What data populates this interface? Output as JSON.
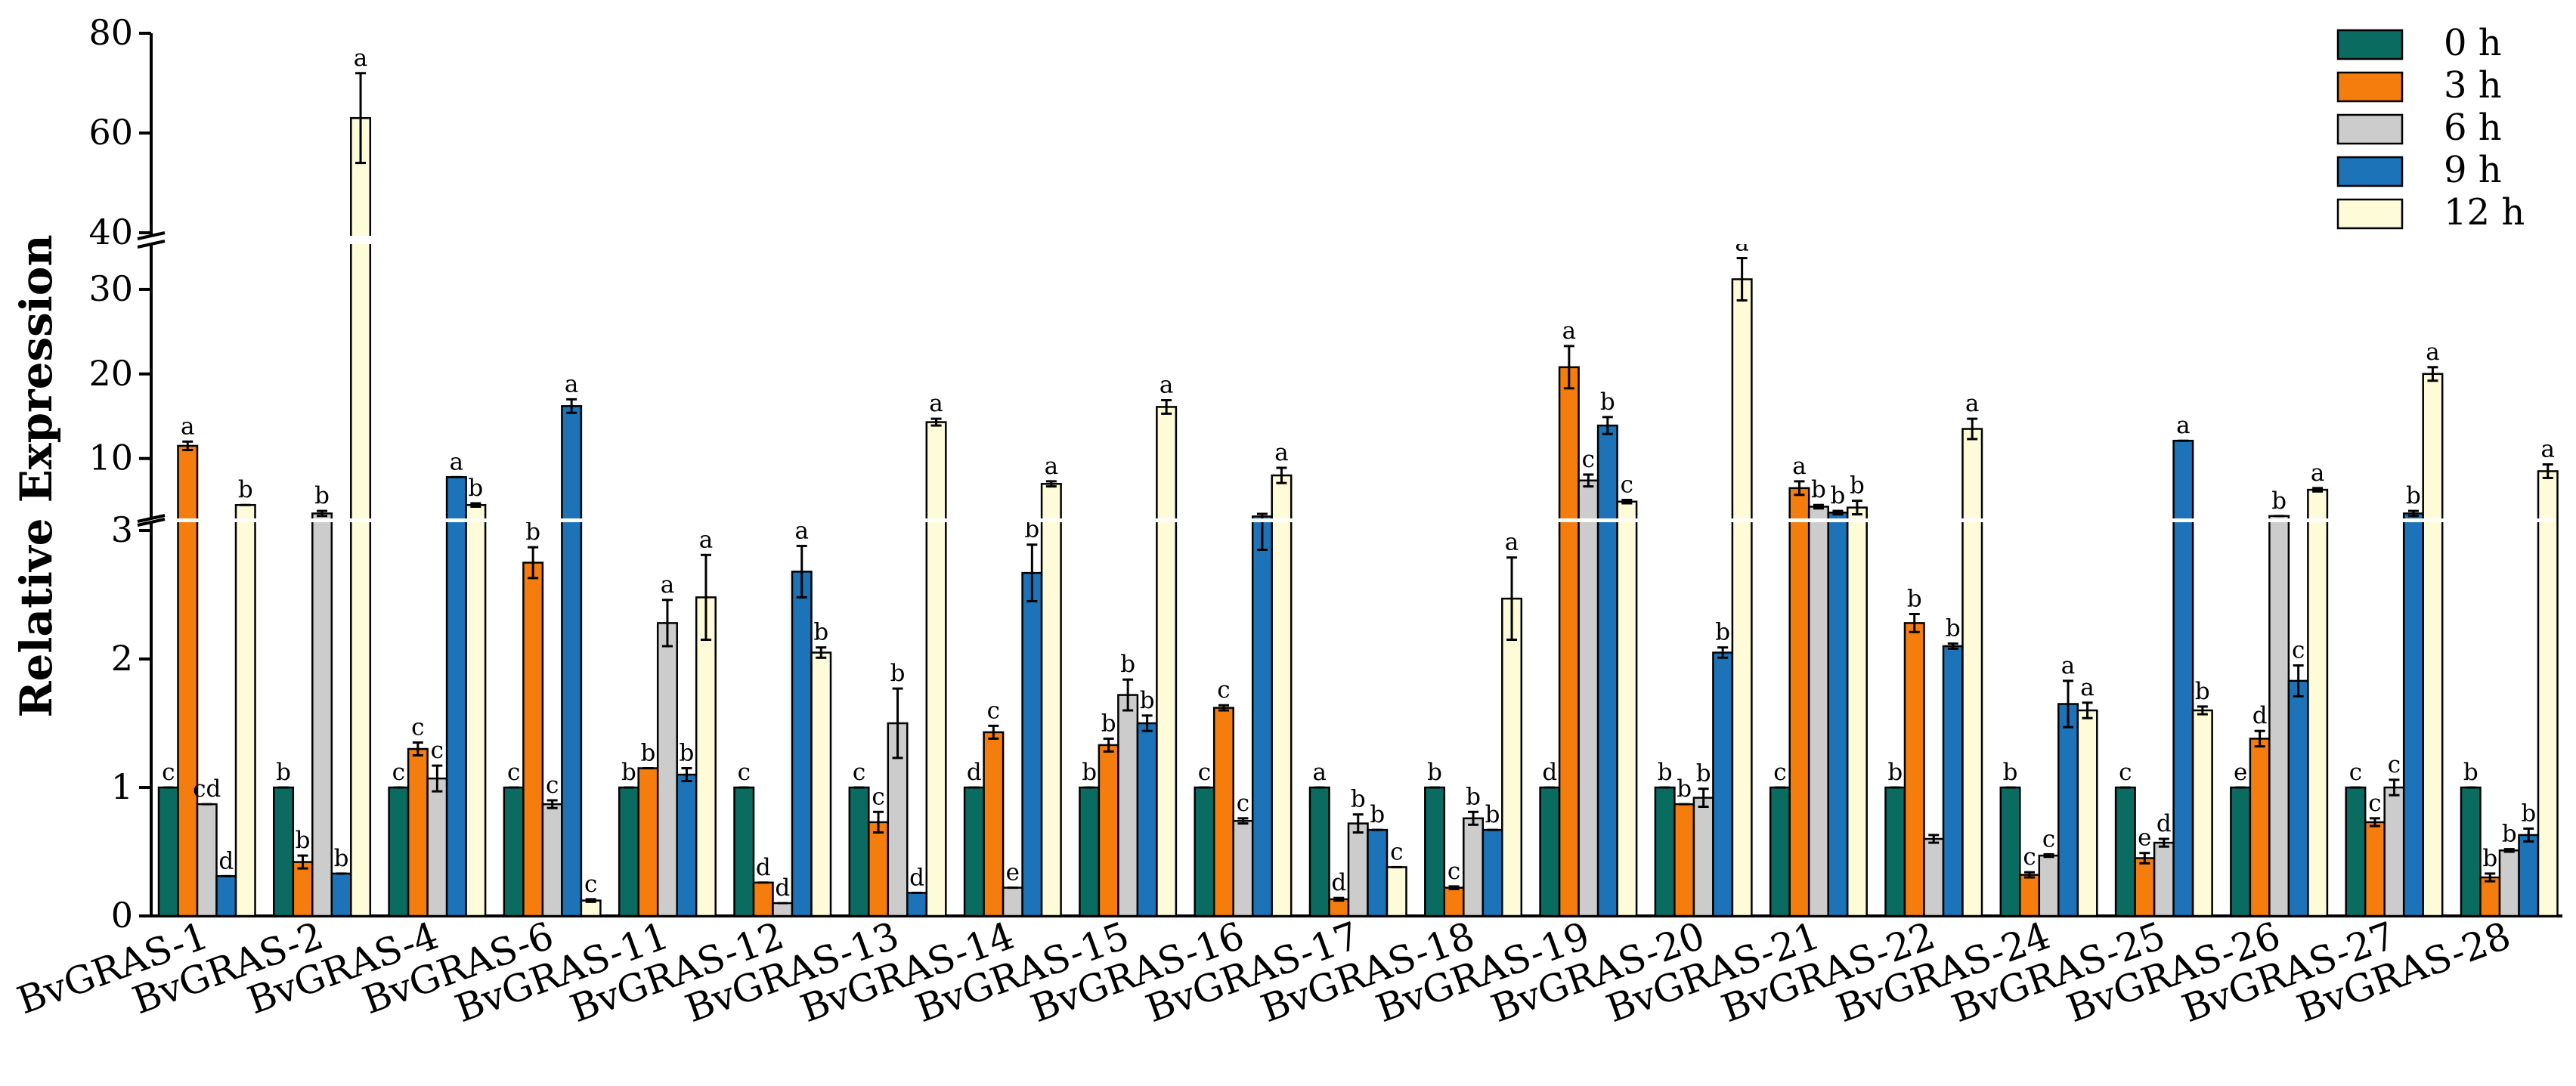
{
  "chart_data": {
    "type": "bar",
    "ylabel": "Relative Expression",
    "title": "",
    "xlabel": "",
    "axis_break": {
      "segments": [
        {
          "range": [
            0,
            3
          ],
          "ticks": [
            0,
            1,
            2,
            3
          ]
        },
        {
          "range": [
            3,
            35
          ],
          "ticks": [
            10,
            20,
            30
          ]
        },
        {
          "range": [
            40,
            80
          ],
          "ticks": [
            40,
            60,
            80
          ]
        }
      ]
    },
    "legend": [
      "0 h",
      "3 h",
      "6 h",
      "9 h",
      "12 h"
    ],
    "colors": [
      "#0a6b60",
      "#f47d0e",
      "#cccccc",
      "#1c73b8",
      "#fefbd8"
    ],
    "categories": [
      "BvGRAS-1",
      "BvGRAS-2",
      "BvGRAS-4",
      "BvGRAS-6",
      "BvGRAS-11",
      "BvGRAS-12",
      "BvGRAS-13",
      "BvGRAS-14",
      "BvGRAS-15",
      "BvGRAS-16",
      "BvGRAS-17",
      "BvGRAS-18",
      "BvGRAS-19",
      "BvGRAS-20",
      "BvGRAS-21",
      "BvGRAS-22",
      "BvGRAS-24",
      "BvGRAS-25",
      "BvGRAS-26",
      "BvGRAS-27",
      "BvGRAS-28"
    ],
    "series": [
      {
        "name": "0 h",
        "values": [
          1,
          1,
          1,
          1,
          1,
          1,
          1,
          1,
          1,
          1,
          1,
          1,
          1,
          1,
          1,
          1,
          1,
          1,
          1,
          1,
          1
        ],
        "errors": [
          0,
          0,
          0,
          0,
          0,
          0,
          0,
          0,
          0,
          0,
          0,
          0,
          0,
          0,
          0,
          0,
          0,
          0,
          0,
          0,
          0
        ],
        "letters": [
          "c",
          "b",
          "c",
          "c",
          "b",
          "c",
          "c",
          "d",
          "b",
          "c",
          "a",
          "b",
          "d",
          "b",
          "c",
          "b",
          "b",
          "c",
          "e",
          "c",
          "b"
        ]
      },
      {
        "name": "3 h",
        "values": [
          11.5,
          0.42,
          1.3,
          2.75,
          1.15,
          0.26,
          0.73,
          1.43,
          1.33,
          1.62,
          0.13,
          0.22,
          20.8,
          0.87,
          6.5,
          2.28,
          0.32,
          0.45,
          1.38,
          0.73,
          0.3
        ],
        "errors": [
          0.5,
          0.05,
          0.05,
          0.12,
          0,
          0,
          0.08,
          0.05,
          0.05,
          0.02,
          0.01,
          0.01,
          2.5,
          0,
          0.8,
          0.07,
          0.02,
          0.04,
          0.06,
          0.03,
          0.03
        ],
        "letters": [
          "a",
          "b",
          "c",
          "b",
          "b",
          "d",
          "c",
          "c",
          "b",
          "c",
          "d",
          "c",
          "a",
          "b",
          "a",
          "b",
          "c",
          "e",
          "d",
          "c",
          "b"
        ]
      },
      {
        "name": "6 h",
        "values": [
          0.87,
          3.5,
          1.07,
          0.87,
          2.28,
          0.1,
          1.5,
          0.22,
          1.72,
          0.74,
          0.72,
          0.76,
          7.4,
          0.92,
          4.3,
          0.6,
          0.47,
          0.57,
          3.2,
          1.0,
          0.51
        ],
        "errors": [
          0,
          0.3,
          0.1,
          0.03,
          0.18,
          0,
          0.27,
          0,
          0.12,
          0.02,
          0.07,
          0.05,
          0.7,
          0.07,
          0.2,
          0.03,
          0.01,
          0.03,
          0,
          0.06,
          0.01
        ],
        "letters": [
          "cd",
          "b",
          "c",
          "c",
          "a",
          "d",
          "b",
          "e",
          "b",
          "c",
          "b",
          "b",
          "c",
          "b",
          "b",
          "",
          "c",
          "d",
          "b",
          "c",
          "b"
        ]
      },
      {
        "name": "9 h",
        "values": [
          0.31,
          0.33,
          7.8,
          16.2,
          1.1,
          2.68,
          0.18,
          2.67,
          1.5,
          3.15,
          0.67,
          0.67,
          13.9,
          2.05,
          3.6,
          2.1,
          1.65,
          12.1,
          1.83,
          3.5,
          0.63
        ],
        "errors": [
          0,
          0,
          0,
          0.8,
          0.05,
          0.2,
          0,
          0.22,
          0.06,
          0.3,
          0,
          0,
          1.0,
          0.04,
          0.2,
          0.02,
          0.18,
          0,
          0.12,
          0.3,
          0.05
        ],
        "letters": [
          "d",
          "b",
          "a",
          "a",
          "b",
          "a",
          "d",
          "b",
          "b",
          "",
          "b",
          "b",
          "b",
          "b",
          "b",
          "b",
          "a",
          "a",
          "c",
          "b",
          "b"
        ]
      },
      {
        "name": "12 h",
        "values": [
          4.5,
          63,
          4.5,
          0.12,
          2.48,
          2.05,
          14.3,
          7.0,
          16.1,
          8.0,
          0.38,
          2.47,
          4.9,
          31.2,
          4.2,
          13.5,
          1.6,
          1.6,
          6.3,
          20,
          8.5
        ],
        "errors": [
          0,
          9,
          0.2,
          0.01,
          0.33,
          0.04,
          0.4,
          0.3,
          0.8,
          0.9,
          0,
          0.32,
          0.2,
          2.5,
          0.8,
          1.2,
          0.06,
          0.03,
          0.2,
          0.8,
          0.8
        ],
        "letters": [
          "b",
          "a",
          "b",
          "c",
          "a",
          "b",
          "a",
          "a",
          "a",
          "a",
          "c",
          "a",
          "c",
          "a",
          "b",
          "a",
          "a",
          "b",
          "a",
          "a",
          "a"
        ]
      }
    ]
  }
}
